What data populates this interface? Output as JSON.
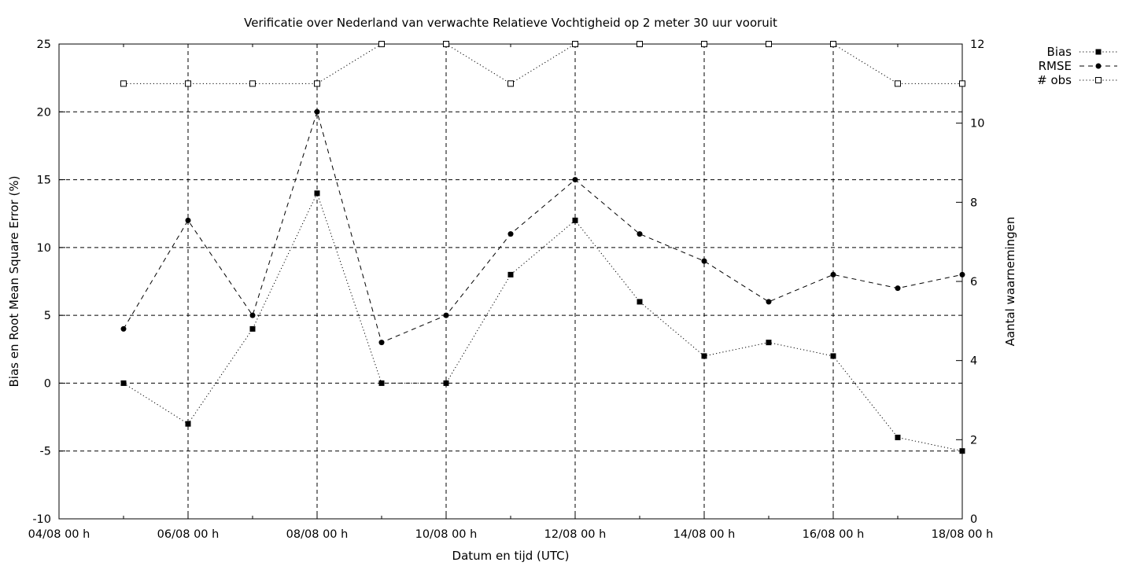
{
  "chart_data": {
    "type": "line",
    "title": "Verificatie over Nederland van verwachte Relatieve Vochtigheid op 2 meter 30 uur vooruit",
    "xlabel": "Datum en tijd (UTC)",
    "ylabel": "Bias en Root Mean Square Error (%)",
    "y2label": "Aantal waarnemingen",
    "x_ticks": [
      "04/08 00 h",
      "06/08 00 h",
      "08/08 00 h",
      "10/08 00 h",
      "12/08 00 h",
      "14/08 00 h",
      "16/08 00 h",
      "18/08 00 h"
    ],
    "x_tick_days": [
      4,
      6,
      8,
      10,
      12,
      14,
      16,
      18
    ],
    "xlim": [
      4,
      18
    ],
    "ylim": [
      -10,
      25
    ],
    "y_ticks": [
      -10,
      -5,
      0,
      5,
      10,
      15,
      20,
      25
    ],
    "y2lim": [
      0,
      12
    ],
    "y2_ticks": [
      0,
      2,
      4,
      6,
      8,
      10,
      12
    ],
    "grid": true,
    "legend_position": "outside-top-right",
    "x": [
      5,
      6,
      7,
      8,
      9,
      10,
      11,
      12,
      13,
      14,
      15,
      16,
      17,
      18
    ],
    "series": [
      {
        "name": "Bias",
        "axis": "y",
        "marker": "filled-square",
        "dash": "dotted",
        "values": [
          0,
          -3,
          4,
          14,
          0,
          0,
          8,
          12,
          6,
          2,
          3,
          2,
          -4,
          -5
        ]
      },
      {
        "name": "RMSE",
        "axis": "y",
        "marker": "filled-circle",
        "dash": "dashed",
        "values": [
          4,
          12,
          5,
          20,
          3,
          5,
          11,
          15,
          11,
          9,
          6,
          8,
          7,
          8
        ]
      },
      {
        "name": "# obs",
        "axis": "y2",
        "marker": "open-square",
        "dash": "dotted",
        "values": [
          11,
          11,
          11,
          11,
          12,
          12,
          11,
          12,
          12,
          12,
          12,
          12,
          11,
          11
        ]
      }
    ]
  }
}
